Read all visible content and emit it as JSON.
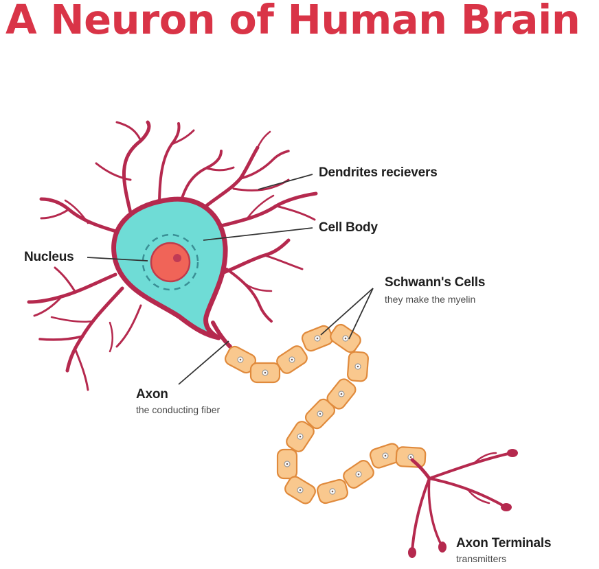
{
  "title": "A Neuron of Human Brain",
  "labels": {
    "dendrites": "Dendrites recievers",
    "cell_body": "Cell Body",
    "nucleus": "Nucleus",
    "schwann": "Schwann's Cells",
    "schwann_sub": "they make the myelin",
    "axon": "Axon",
    "axon_sub": "the conducting fiber",
    "terminals": "Axon Terminals",
    "terminals_sub": "transmitters"
  },
  "colors": {
    "title": "#d93447",
    "membrane": "#b5294e",
    "cytoplasm": "#6fdcd6",
    "nucleus": "#f06458",
    "nucleolus": "#c03a55",
    "myelin": "#f9c88e",
    "myelin_edge": "#e08a3c",
    "leader": "#333333"
  }
}
